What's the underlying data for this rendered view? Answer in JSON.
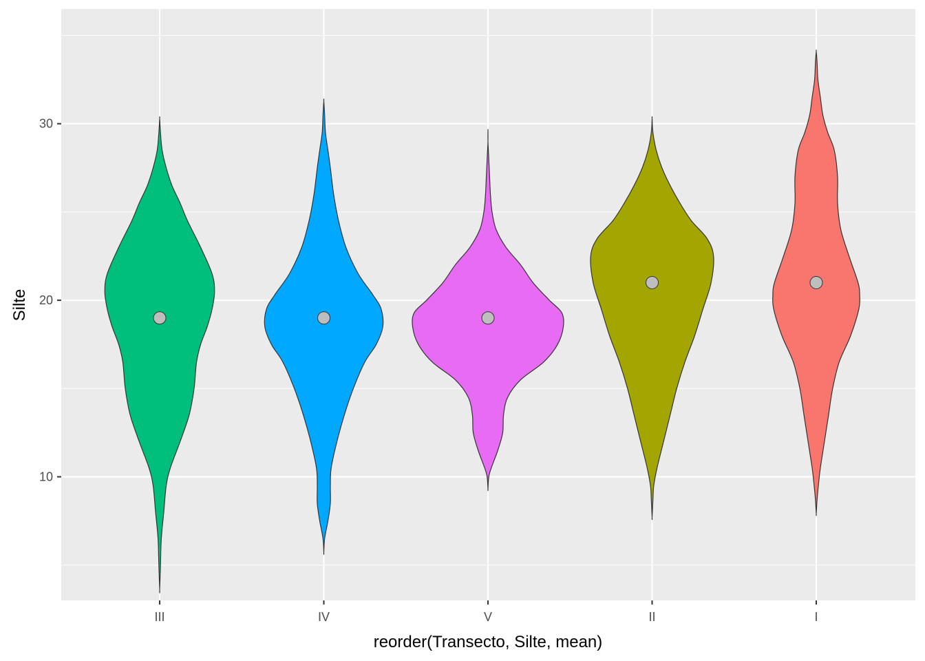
{
  "chart_data": {
    "type": "violin",
    "title": "",
    "xlabel": "reorder(Transecto, Silte, mean)",
    "ylabel": "Silte",
    "categories": [
      "III",
      "IV",
      "V",
      "II",
      "I"
    ],
    "y_ticks": [
      10,
      20,
      30
    ],
    "y_tick_labels": [
      "10",
      "20",
      "30"
    ],
    "ylim": [
      3.0,
      36.5
    ],
    "grid": true,
    "panel_background": "#EBEBEB",
    "grid_color": "#FFFFFF",
    "outline_color": "#333333",
    "point_color": "#BEBEBE",
    "series": [
      {
        "name": "III",
        "color": "#00BF7D",
        "point": 19,
        "density": [
          [
            3.6,
            0.0
          ],
          [
            5.0,
            0.01
          ],
          [
            6.5,
            0.02
          ],
          [
            8.0,
            0.05
          ],
          [
            9.5,
            0.08
          ],
          [
            10.5,
            0.13
          ],
          [
            12.0,
            0.25
          ],
          [
            13.5,
            0.36
          ],
          [
            15.0,
            0.42
          ],
          [
            16.5,
            0.45
          ],
          [
            17.5,
            0.5
          ],
          [
            18.5,
            0.58
          ],
          [
            19.5,
            0.64
          ],
          [
            20.5,
            0.67
          ],
          [
            21.5,
            0.64
          ],
          [
            23.0,
            0.5
          ],
          [
            24.5,
            0.34
          ],
          [
            25.5,
            0.25
          ],
          [
            26.5,
            0.15
          ],
          [
            27.5,
            0.08
          ],
          [
            28.5,
            0.03
          ],
          [
            29.5,
            0.01
          ],
          [
            30.3,
            0.0
          ]
        ]
      },
      {
        "name": "IV",
        "color": "#00A9FF",
        "point": 19,
        "density": [
          [
            5.7,
            0.0
          ],
          [
            6.5,
            0.01
          ],
          [
            7.5,
            0.05
          ],
          [
            8.5,
            0.08
          ],
          [
            9.5,
            0.08
          ],
          [
            10.5,
            0.09
          ],
          [
            12.0,
            0.16
          ],
          [
            13.5,
            0.25
          ],
          [
            15.0,
            0.36
          ],
          [
            16.5,
            0.5
          ],
          [
            17.5,
            0.64
          ],
          [
            18.5,
            0.72
          ],
          [
            19.5,
            0.7
          ],
          [
            20.3,
            0.6
          ],
          [
            21.5,
            0.42
          ],
          [
            23.0,
            0.27
          ],
          [
            24.5,
            0.18
          ],
          [
            26.0,
            0.12
          ],
          [
            27.5,
            0.08
          ],
          [
            28.5,
            0.05
          ],
          [
            29.5,
            0.02
          ],
          [
            30.5,
            0.01
          ],
          [
            31.3,
            0.0
          ]
        ]
      },
      {
        "name": "V",
        "color": "#E76BF3",
        "point": 19,
        "density": [
          [
            9.3,
            0.0
          ],
          [
            10.0,
            0.01
          ],
          [
            10.5,
            0.04
          ],
          [
            11.5,
            0.12
          ],
          [
            12.5,
            0.18
          ],
          [
            13.5,
            0.19
          ],
          [
            14.5,
            0.24
          ],
          [
            15.5,
            0.4
          ],
          [
            16.5,
            0.68
          ],
          [
            17.5,
            0.85
          ],
          [
            18.5,
            0.92
          ],
          [
            19.3,
            0.9
          ],
          [
            20.0,
            0.75
          ],
          [
            21.0,
            0.55
          ],
          [
            22.0,
            0.4
          ],
          [
            23.0,
            0.22
          ],
          [
            24.0,
            0.1
          ],
          [
            25.0,
            0.05
          ],
          [
            26.0,
            0.03
          ],
          [
            27.0,
            0.02
          ],
          [
            28.0,
            0.01
          ],
          [
            29.0,
            0.0
          ],
          [
            29.6,
            0.0
          ]
        ]
      },
      {
        "name": "II",
        "color": "#A3A500",
        "point": 21,
        "density": [
          [
            7.7,
            0.0
          ],
          [
            8.7,
            0.01
          ],
          [
            9.5,
            0.02
          ],
          [
            10.5,
            0.06
          ],
          [
            12.0,
            0.14
          ],
          [
            13.5,
            0.22
          ],
          [
            15.0,
            0.3
          ],
          [
            16.5,
            0.4
          ],
          [
            18.0,
            0.52
          ],
          [
            19.5,
            0.62
          ],
          [
            21.0,
            0.72
          ],
          [
            22.5,
            0.75
          ],
          [
            23.5,
            0.67
          ],
          [
            24.5,
            0.48
          ],
          [
            25.5,
            0.34
          ],
          [
            26.5,
            0.22
          ],
          [
            27.5,
            0.12
          ],
          [
            28.5,
            0.05
          ],
          [
            29.5,
            0.01
          ],
          [
            30.3,
            0.0
          ]
        ]
      },
      {
        "name": "I",
        "color": "#F8766D",
        "point": 21,
        "density": [
          [
            7.9,
            0.0
          ],
          [
            8.7,
            0.01
          ],
          [
            9.7,
            0.03
          ],
          [
            10.5,
            0.05
          ],
          [
            12.0,
            0.1
          ],
          [
            13.5,
            0.15
          ],
          [
            15.0,
            0.2
          ],
          [
            16.5,
            0.28
          ],
          [
            18.0,
            0.42
          ],
          [
            19.5,
            0.52
          ],
          [
            20.3,
            0.53
          ],
          [
            21.0,
            0.51
          ],
          [
            22.5,
            0.4
          ],
          [
            24.0,
            0.3
          ],
          [
            25.5,
            0.26
          ],
          [
            27.0,
            0.26
          ],
          [
            28.5,
            0.22
          ],
          [
            29.5,
            0.14
          ],
          [
            30.5,
            0.08
          ],
          [
            31.5,
            0.05
          ],
          [
            32.5,
            0.02
          ],
          [
            33.5,
            0.01
          ],
          [
            34.1,
            0.0
          ]
        ]
      }
    ]
  }
}
